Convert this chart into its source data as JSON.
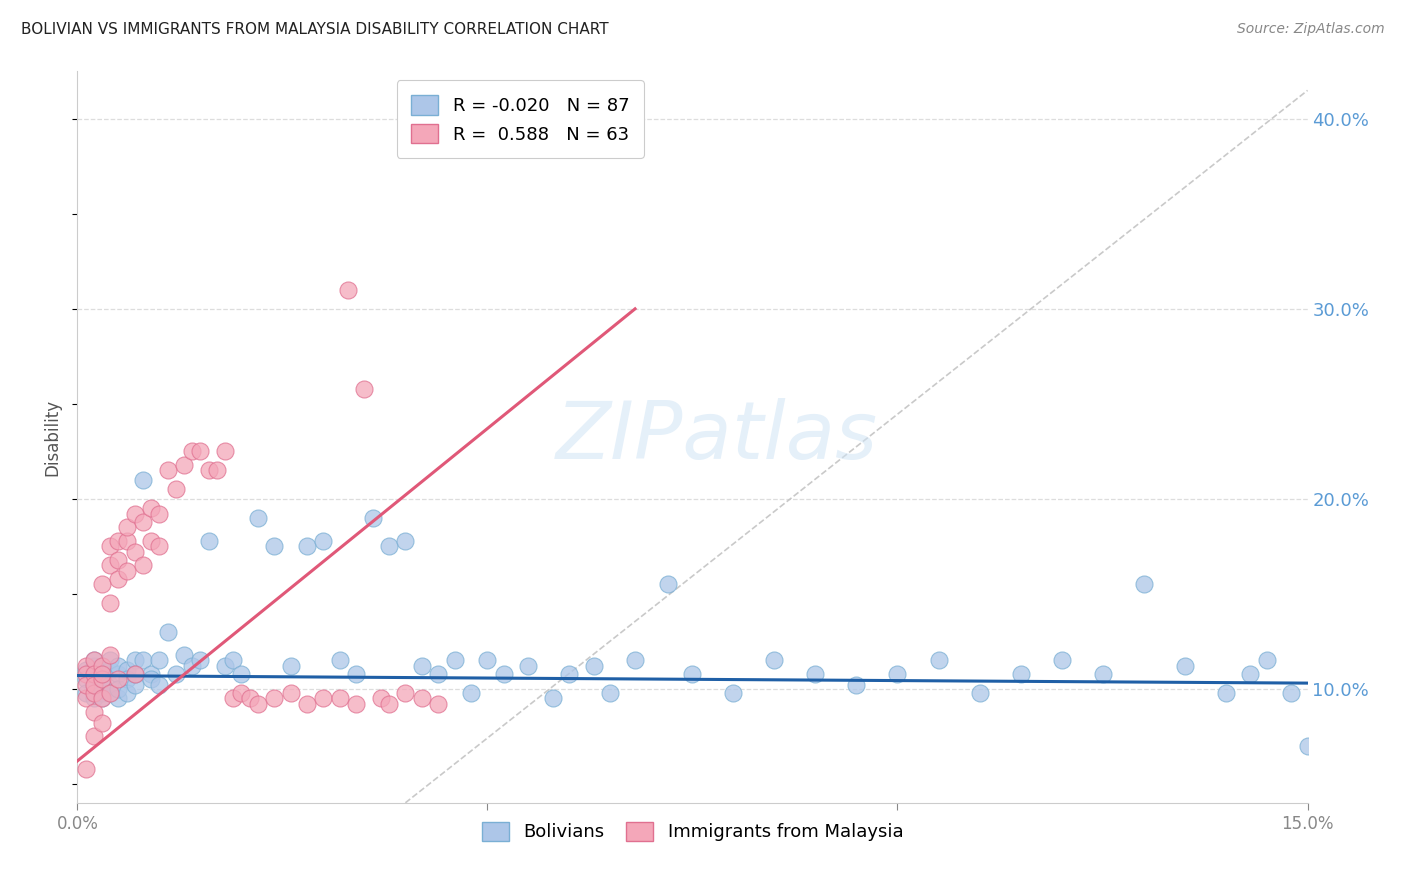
{
  "title": "BOLIVIAN VS IMMIGRANTS FROM MALAYSIA DISABILITY CORRELATION CHART",
  "source": "Source: ZipAtlas.com",
  "ylabel": "Disability",
  "xlim": [
    0.0,
    0.15
  ],
  "ylim": [
    0.04,
    0.425
  ],
  "y_ticks_right": [
    0.1,
    0.2,
    0.3,
    0.4
  ],
  "y_tick_labels_right": [
    "10.0%",
    "20.0%",
    "30.0%",
    "40.0%"
  ],
  "grid_color": "#dddddd",
  "background_color": "#ffffff",
  "title_color": "#222222",
  "right_axis_color": "#5b9bd5",
  "bolivians_color": "#adc6e8",
  "malaysia_color": "#f4a7b9",
  "bolivians_edge_color": "#7aafd4",
  "malaysia_edge_color": "#e07090",
  "blue_line_color": "#1f5fa6",
  "pink_line_color": "#e05878",
  "diag_line_color": "#c0c0c0",
  "legend_label1": "Bolivians",
  "legend_label2": "Immigrants from Malaysia",
  "R_bolivians": -0.02,
  "N_bolivians": 87,
  "R_malaysia": 0.588,
  "N_malaysia": 63,
  "bolivians_x": [
    0.001,
    0.001,
    0.001,
    0.002,
    0.002,
    0.002,
    0.002,
    0.002,
    0.003,
    0.003,
    0.003,
    0.003,
    0.003,
    0.003,
    0.004,
    0.004,
    0.004,
    0.004,
    0.005,
    0.005,
    0.005,
    0.005,
    0.006,
    0.006,
    0.006,
    0.007,
    0.007,
    0.007,
    0.008,
    0.008,
    0.009,
    0.009,
    0.01,
    0.01,
    0.011,
    0.012,
    0.013,
    0.014,
    0.015,
    0.016,
    0.018,
    0.019,
    0.02,
    0.022,
    0.024,
    0.026,
    0.028,
    0.03,
    0.032,
    0.034,
    0.036,
    0.038,
    0.04,
    0.042,
    0.044,
    0.046,
    0.048,
    0.05,
    0.052,
    0.055,
    0.058,
    0.06,
    0.063,
    0.065,
    0.068,
    0.072,
    0.075,
    0.08,
    0.085,
    0.09,
    0.095,
    0.1,
    0.105,
    0.11,
    0.115,
    0.12,
    0.125,
    0.13,
    0.135,
    0.14,
    0.143,
    0.145,
    0.148,
    0.15,
    0.152,
    0.153,
    0.155
  ],
  "bolivians_y": [
    0.11,
    0.105,
    0.098,
    0.112,
    0.108,
    0.095,
    0.102,
    0.115,
    0.11,
    0.098,
    0.105,
    0.112,
    0.095,
    0.108,
    0.11,
    0.102,
    0.098,
    0.115,
    0.108,
    0.095,
    0.112,
    0.1,
    0.11,
    0.105,
    0.098,
    0.115,
    0.102,
    0.108,
    0.21,
    0.115,
    0.108,
    0.105,
    0.115,
    0.102,
    0.13,
    0.108,
    0.118,
    0.112,
    0.115,
    0.178,
    0.112,
    0.115,
    0.108,
    0.19,
    0.175,
    0.112,
    0.175,
    0.178,
    0.115,
    0.108,
    0.19,
    0.175,
    0.178,
    0.112,
    0.108,
    0.115,
    0.098,
    0.115,
    0.108,
    0.112,
    0.095,
    0.108,
    0.112,
    0.098,
    0.115,
    0.155,
    0.108,
    0.098,
    0.115,
    0.108,
    0.102,
    0.108,
    0.115,
    0.098,
    0.108,
    0.115,
    0.108,
    0.155,
    0.112,
    0.098,
    0.108,
    0.115,
    0.098,
    0.07,
    0.108,
    0.112,
    0.095
  ],
  "malaysia_x": [
    0.001,
    0.001,
    0.001,
    0.001,
    0.001,
    0.002,
    0.002,
    0.002,
    0.002,
    0.002,
    0.002,
    0.003,
    0.003,
    0.003,
    0.003,
    0.003,
    0.003,
    0.004,
    0.004,
    0.004,
    0.004,
    0.004,
    0.005,
    0.005,
    0.005,
    0.005,
    0.006,
    0.006,
    0.006,
    0.007,
    0.007,
    0.007,
    0.008,
    0.008,
    0.009,
    0.009,
    0.01,
    0.01,
    0.011,
    0.012,
    0.013,
    0.014,
    0.015,
    0.016,
    0.017,
    0.018,
    0.019,
    0.02,
    0.021,
    0.022,
    0.024,
    0.026,
    0.028,
    0.03,
    0.032,
    0.033,
    0.034,
    0.035,
    0.037,
    0.038,
    0.04,
    0.042,
    0.044
  ],
  "malaysia_y": [
    0.112,
    0.108,
    0.095,
    0.102,
    0.058,
    0.115,
    0.098,
    0.108,
    0.088,
    0.102,
    0.075,
    0.112,
    0.095,
    0.105,
    0.082,
    0.155,
    0.108,
    0.118,
    0.165,
    0.145,
    0.175,
    0.098,
    0.158,
    0.168,
    0.178,
    0.105,
    0.162,
    0.178,
    0.185,
    0.172,
    0.192,
    0.108,
    0.188,
    0.165,
    0.195,
    0.178,
    0.192,
    0.175,
    0.215,
    0.205,
    0.218,
    0.225,
    0.225,
    0.215,
    0.215,
    0.225,
    0.095,
    0.098,
    0.095,
    0.092,
    0.095,
    0.098,
    0.092,
    0.095,
    0.095,
    0.31,
    0.092,
    0.258,
    0.095,
    0.092,
    0.098,
    0.095,
    0.092
  ],
  "blue_line_x": [
    0.0,
    0.15
  ],
  "blue_line_y": [
    0.107,
    0.103
  ],
  "pink_line_x": [
    0.0,
    0.068
  ],
  "pink_line_y": [
    0.062,
    0.3
  ],
  "diag_line_x": [
    0.04,
    0.15
  ],
  "diag_line_y": [
    0.04,
    0.415
  ]
}
